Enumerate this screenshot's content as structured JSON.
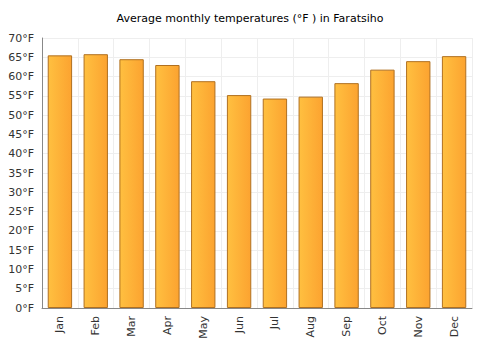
{
  "chart_data": {
    "type": "bar",
    "title": "Average monthly temperatures (°F ) in Faratsiho",
    "categories": [
      "Jan",
      "Feb",
      "Mar",
      "Apr",
      "May",
      "Jun",
      "Jul",
      "Aug",
      "Sep",
      "Oct",
      "Nov",
      "Dec"
    ],
    "values": [
      65.5,
      65.8,
      64.5,
      63.0,
      58.8,
      55.2,
      54.3,
      54.8,
      58.3,
      61.8,
      64.0,
      65.3
    ],
    "color": "#fca330",
    "ylim": [
      0,
      70
    ],
    "yticks": [
      {
        "value": 0,
        "label": "0°F"
      },
      {
        "value": 5,
        "label": "5°F"
      },
      {
        "value": 10,
        "label": "10°F"
      },
      {
        "value": 15,
        "label": "15°F"
      },
      {
        "value": 20,
        "label": "20°F"
      },
      {
        "value": 25,
        "label": "25°F"
      },
      {
        "value": 30,
        "label": "30°F"
      },
      {
        "value": 35,
        "label": "35°F"
      },
      {
        "value": 40,
        "label": "40°F"
      },
      {
        "value": 45,
        "label": "45°F"
      },
      {
        "value": 50,
        "label": "50°F"
      },
      {
        "value": 55,
        "label": "55°F"
      },
      {
        "value": 60,
        "label": "60°F"
      },
      {
        "value": 65,
        "label": "65°F"
      },
      {
        "value": 70,
        "label": "70°F"
      }
    ],
    "grid": true
  }
}
